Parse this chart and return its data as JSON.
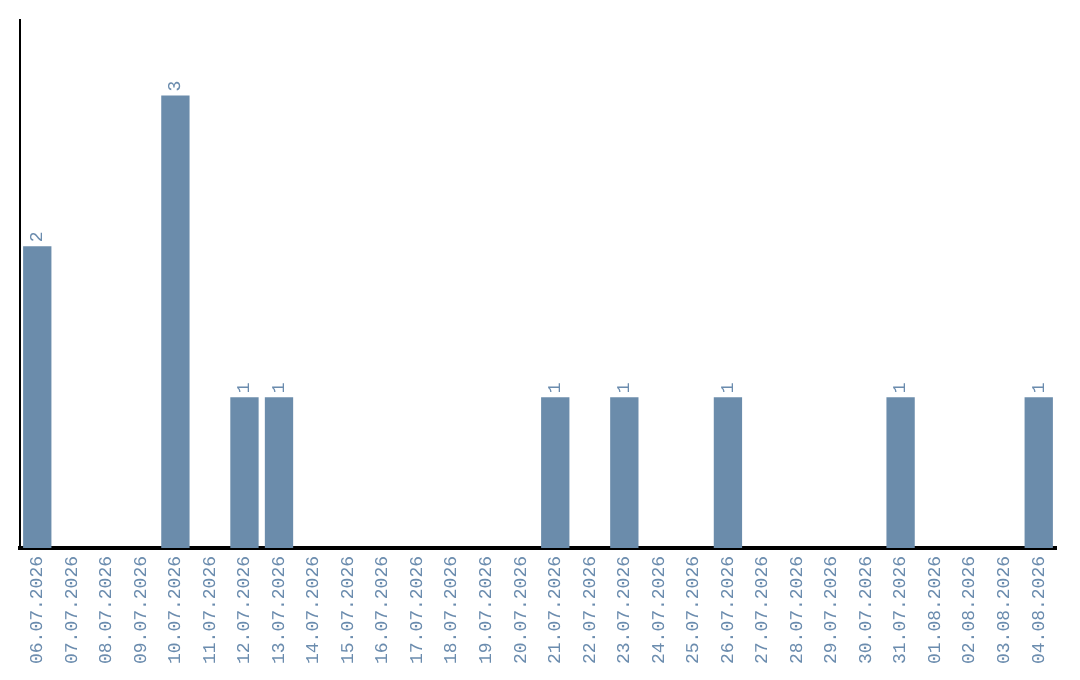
{
  "chart_data": {
    "type": "bar",
    "relative": false,
    "categories": [
      "06.07.2026",
      "07.07.2026",
      "08.07.2026",
      "09.07.2026",
      "10.07.2026",
      "11.07.2026",
      "12.07.2026",
      "13.07.2026",
      "14.07.2026",
      "15.07.2026",
      "16.07.2026",
      "17.07.2026",
      "18.07.2026",
      "19.07.2026",
      "20.07.2026",
      "21.07.2026",
      "22.07.2026",
      "23.07.2026",
      "24.07.2026",
      "25.07.2026",
      "26.07.2026",
      "27.07.2026",
      "28.07.2026",
      "29.07.2026",
      "30.07.2026",
      "31.07.2026",
      "01.08.2026",
      "02.08.2026",
      "03.08.2026",
      "04.08.2026"
    ],
    "values": [
      2,
      0,
      0,
      0,
      3,
      0,
      1,
      1,
      0,
      0,
      0,
      0,
      0,
      0,
      0,
      1,
      0,
      1,
      0,
      0,
      1,
      0,
      0,
      0,
      0,
      1,
      0,
      0,
      0,
      1
    ],
    "value_labels": [
      "2",
      null,
      null,
      null,
      "3",
      null,
      "1",
      "1",
      null,
      null,
      null,
      null,
      null,
      null,
      null,
      "1",
      null,
      "1",
      null,
      null,
      "1",
      null,
      null,
      null,
      null,
      "1",
      null,
      null,
      null,
      "1"
    ],
    "color": "#6b8cab",
    "grid": false,
    "legend": false
  }
}
